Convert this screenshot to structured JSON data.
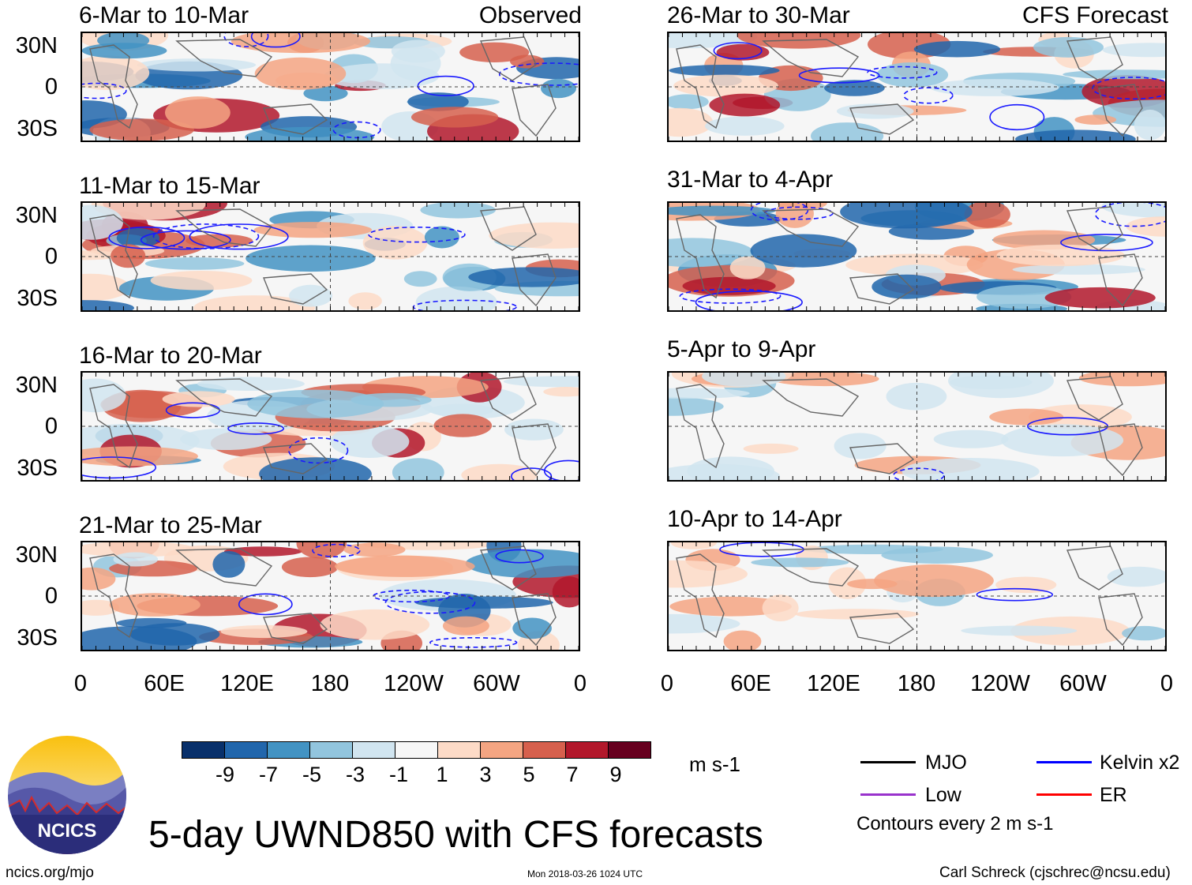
{
  "panels": {
    "left": [
      {
        "period": "6-Mar to 10-Mar",
        "label": "Observed"
      },
      {
        "period": "11-Mar to 15-Mar",
        "label": ""
      },
      {
        "period": "16-Mar to 20-Mar",
        "label": ""
      },
      {
        "period": "21-Mar to 25-Mar",
        "label": ""
      }
    ],
    "right": [
      {
        "period": "26-Mar to 30-Mar",
        "label": "CFS Forecast"
      },
      {
        "period": "31-Mar to 4-Apr",
        "label": ""
      },
      {
        "period": "5-Apr to 9-Apr",
        "label": ""
      },
      {
        "period": "10-Apr to 14-Apr",
        "label": ""
      }
    ]
  },
  "axes": {
    "lat_labels": [
      "30N",
      "0",
      "30S"
    ],
    "lon_labels": [
      "0",
      "60E",
      "120E",
      "180",
      "120W",
      "60W",
      "0"
    ]
  },
  "colorbar": {
    "colors": [
      "#08306b",
      "#2166ac",
      "#4393c3",
      "#92c5de",
      "#d1e5f0",
      "#f7f7f7",
      "#fddbc7",
      "#f4a582",
      "#d6604d",
      "#b2182b",
      "#67001f"
    ],
    "tick_labels": [
      "-9",
      "-7",
      "-5",
      "-3",
      "-1",
      "1",
      "3",
      "5",
      "7",
      "9"
    ],
    "units": "m s-1"
  },
  "legend": {
    "items": [
      {
        "label": "MJO",
        "color": "#000000"
      },
      {
        "label": "Kelvin x2",
        "color": "#0000ff"
      },
      {
        "label": "Low",
        "color": "#9932cc"
      },
      {
        "label": "ER",
        "color": "#ff0000"
      }
    ],
    "note": "Contours every 2 m s-1"
  },
  "title": "5-day UWND850 with CFS forecasts",
  "logo_text": "NCICS",
  "footer": {
    "url": "ncics.org/mjo",
    "timestamp": "Mon 2018-03-26 1024 UTC",
    "author": "Carl Schreck (cjschrec@ncsu.edu)"
  }
}
